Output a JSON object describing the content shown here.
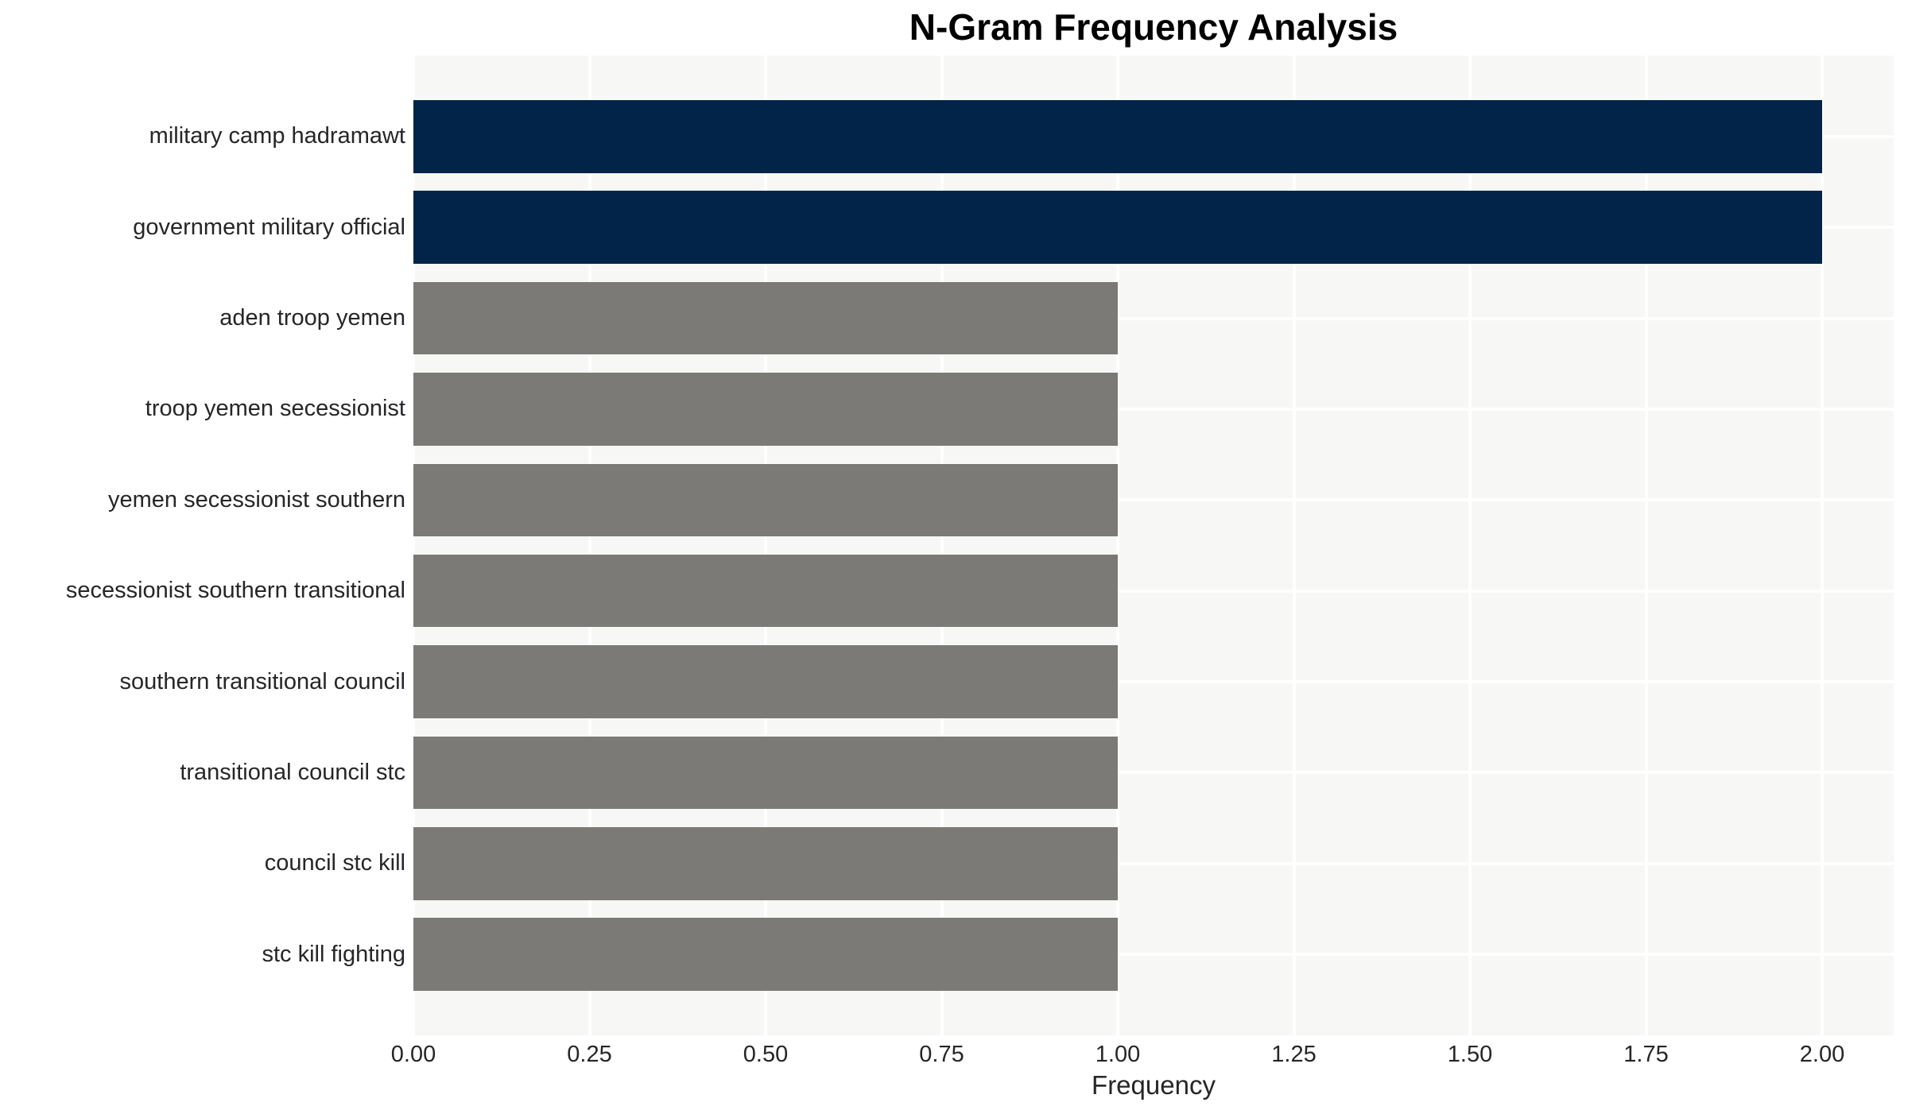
{
  "chart_data": {
    "type": "bar",
    "orientation": "horizontal",
    "title": "N-Gram Frequency Analysis",
    "xlabel": "Frequency",
    "ylabel": "",
    "categories": [
      "military camp hadramawt",
      "government military official",
      "aden troop yemen",
      "troop yemen secessionist",
      "yemen secessionist southern",
      "secessionist southern transitional",
      "southern transitional council",
      "transitional council stc",
      "council stc kill",
      "stc kill fighting"
    ],
    "values": [
      2,
      2,
      1,
      1,
      1,
      1,
      1,
      1,
      1,
      1
    ],
    "bar_colors": [
      "#032449",
      "#032449",
      "#7B7A76",
      "#7B7A76",
      "#7B7A76",
      "#7B7A76",
      "#7B7A76",
      "#7B7A76",
      "#7B7A76",
      "#7B7A76"
    ],
    "x_tick_labels": [
      "0.00",
      "0.25",
      "0.50",
      "0.75",
      "1.00",
      "1.25",
      "1.50",
      "1.75",
      "2.00"
    ],
    "x_tick_values": [
      0,
      0.25,
      0.5,
      0.75,
      1.0,
      1.25,
      1.5,
      1.75,
      2.0
    ],
    "xlim": [
      0,
      2.102
    ],
    "bar_height_fraction": 0.8,
    "grid": true,
    "legend": false,
    "colors": {
      "plot_background": "#F7F7F5",
      "gridline": "#FFFFFF",
      "tick_text": "#262626",
      "title_text": "#000000",
      "high_bar": "#032449",
      "low_bar": "#7B7A76"
    }
  }
}
